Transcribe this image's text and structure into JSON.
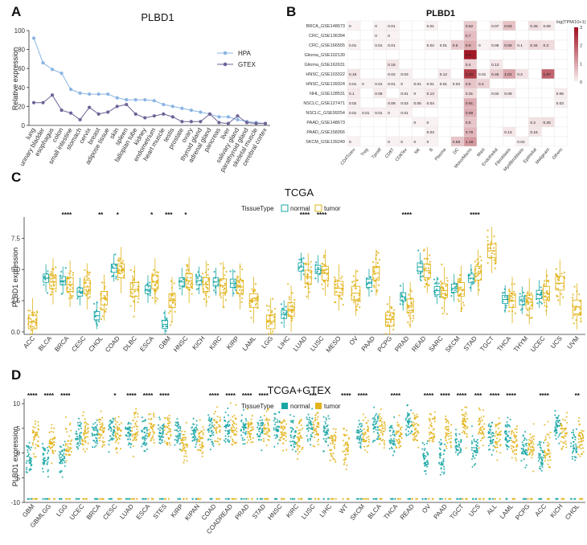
{
  "colors": {
    "hpa": "#8ab4e3",
    "gtex": "#6e6396",
    "normal": "#1aa6a6",
    "tumor": "#e2b31a",
    "heat_high": "#9e0f1e",
    "heat_low": "#f9f1f2"
  },
  "chart_data": [
    {
      "panel": "A",
      "type": "line",
      "title": "PLBD1",
      "xlabel": "",
      "ylabel": "Relative expression",
      "ylim": [
        0,
        100
      ],
      "yticks": [
        0,
        20,
        40,
        60,
        80,
        100
      ],
      "legend": "right",
      "categories": [
        "lung",
        "urinary bladder",
        "esophagus",
        "colon",
        "small intestine",
        "stomach",
        "cervix",
        "breast",
        "adipose tissue",
        "skin",
        "spleen",
        "fallopian tube",
        "kidney",
        "endometrium",
        "heart muscle",
        "testis",
        "prostate",
        "ovary",
        "thyroid gland",
        "adrenal gland",
        "pancreas",
        "liver",
        "salivary gland",
        "parathyroid gland",
        "skeletal muscle",
        "cerebral cortex"
      ],
      "series": [
        {
          "name": "HPA",
          "values": [
            92,
            66,
            59,
            55,
            38,
            34,
            33,
            33,
            33,
            29,
            27,
            27,
            27,
            26,
            22,
            20,
            18,
            16,
            14,
            12,
            9,
            9,
            6,
            4,
            3,
            2
          ]
        },
        {
          "name": "GTEX",
          "values": [
            24,
            24,
            32,
            16,
            13,
            6,
            19,
            12,
            14,
            20,
            22,
            12,
            8,
            10,
            12,
            9,
            4,
            4,
            4,
            12,
            3,
            2,
            10,
            3,
            2,
            2
          ]
        }
      ]
    },
    {
      "panel": "B",
      "type": "heatmap",
      "title": "PLBD1",
      "legend_title": "log(TPM/10+1)",
      "legend_ticks": [
        "0",
        "1",
        "2",
        "3"
      ],
      "rows": [
        "BRCA_GSE148673",
        "CRC_GSE136394",
        "CRC_GSE166555",
        "Glioma_GSE102130",
        "Glioma_GSE162631",
        "HNSC_GSE103322",
        "HNSC_GSE139324",
        "NHL_GSE128531",
        "NSCLC_GSE127471",
        "NSCLC_GSE99254",
        "PAAD_GSE148673",
        "PAAD_GSE158356",
        "SKCM_GSE139249"
      ],
      "columns": [
        "CD4Tconv",
        "Treg",
        "Tprolif",
        "CD8T",
        "CD8Tex",
        "NK",
        "B",
        "Plasma",
        "DC",
        "Mono/Macro",
        "Mast",
        "Endothelial",
        "Fibroblasts",
        "Myofibroblasts",
        "Epithelial",
        "Malignant",
        "Others"
      ],
      "cells": [
        [
          "0",
          "",
          "0",
          "0.01",
          "",
          "",
          "0.01",
          "",
          "",
          "0.52",
          "",
          "0.07",
          "0.63",
          "",
          "0.25",
          "0.08",
          ""
        ],
        [
          "",
          "",
          "0",
          "0",
          "",
          "",
          "",
          "",
          "",
          "0.7",
          "",
          "",
          "",
          "",
          "",
          "",
          ""
        ],
        [
          "0.01",
          "",
          "0.01",
          "0.01",
          "",
          "",
          "0.02",
          "0.01",
          "0.5",
          "0.9",
          "0",
          "0.06",
          "0.59",
          "0.1",
          "0.34",
          "0.3",
          ""
        ],
        [
          "",
          "",
          "",
          "",
          "",
          "",
          "",
          "",
          "",
          "2.9",
          "",
          "",
          "",
          "",
          "",
          "",
          ""
        ],
        [
          "",
          "",
          "",
          "0.16",
          "",
          "",
          "",
          "",
          "",
          "0.4",
          "",
          "0.13",
          "",
          "",
          "",
          "",
          ""
        ],
        [
          "0.16",
          "",
          "",
          "0.02",
          "0.03",
          "",
          "",
          "0.12",
          "",
          "2.46",
          "0.01",
          "0.45",
          "1.01",
          "0.2",
          "",
          "1.87",
          ""
        ],
        [
          "0.01",
          "0",
          "0.01",
          "0.01",
          "0",
          "0.01",
          "0.01",
          "0.01",
          "0.02",
          "0.6",
          "0.4",
          "",
          "",
          "",
          "",
          "",
          ""
        ],
        [
          "0.1",
          "",
          "0.08",
          "",
          "0.01",
          "0",
          "0.13",
          "",
          "",
          "0.31",
          "",
          "0.02",
          "0.09",
          "",
          "",
          "",
          "0.06"
        ],
        [
          "0.02",
          "",
          "",
          "0.08",
          "0.03",
          "0.05",
          "0.04",
          "",
          "",
          "0.91",
          "",
          "",
          "",
          "",
          "",
          "",
          "0.03"
        ],
        [
          "0.01",
          "0.01",
          "0.01",
          "0",
          "0.01",
          "",
          "",
          "",
          "",
          "0.89",
          "",
          "",
          "",
          "",
          "",
          "",
          ""
        ],
        [
          "",
          "",
          "",
          "",
          "",
          "0",
          "0",
          "",
          "",
          "0.6",
          "",
          "",
          "",
          "",
          "0.2",
          "0.25",
          ""
        ],
        [
          "",
          "",
          "",
          "",
          "",
          "",
          "0.03",
          "",
          "",
          "0.79",
          "",
          "",
          "0.13",
          "",
          "0.16",
          "",
          ""
        ],
        [
          "0",
          "",
          "",
          "0",
          "0",
          "0",
          "0",
          "",
          "0.59",
          "1.18",
          "",
          "",
          "",
          "0.02",
          "",
          "",
          ""
        ]
      ]
    },
    {
      "panel": "C",
      "type": "box",
      "title": "TCGA",
      "ylabel": "PLBD1 expression",
      "ylim": [
        -0.2,
        9.2
      ],
      "yticks": [
        0.0,
        2.5,
        5.0,
        7.5
      ],
      "legend_title": "TissueType",
      "legend_items": [
        "normal",
        "tumor"
      ],
      "categories": [
        "ACC",
        "BLCA",
        "BRCA",
        "CESC",
        "CHOL",
        "COAD",
        "DLBC",
        "ESCA",
        "GBM",
        "HNSC",
        "KICH",
        "KIRC",
        "KIRP",
        "LAML",
        "LGG",
        "LIHC",
        "LUAD",
        "LUSC",
        "MESO",
        "OV",
        "PAAD",
        "PCPG",
        "PRAD",
        "READ",
        "SARC",
        "SKCM",
        "STAD",
        "TGCT",
        "THCA",
        "THYM",
        "UCEC",
        "UCS",
        "UVM"
      ],
      "normal_median": [
        null,
        4.3,
        4.1,
        3.2,
        1.3,
        5.1,
        null,
        3.4,
        0.6,
        4.0,
        4.1,
        4.0,
        3.9,
        null,
        null,
        1.4,
        5.2,
        5.0,
        null,
        null,
        3.9,
        null,
        2.8,
        5.2,
        3.3,
        3.5,
        4.3,
        null,
        2.6,
        2.5,
        3.0,
        null,
        null
      ],
      "tumor_median": [
        0.8,
        4.0,
        3.8,
        3.6,
        2.7,
        4.9,
        3.4,
        4.0,
        2.5,
        4.1,
        3.8,
        3.7,
        3.6,
        2.5,
        0.8,
        1.8,
        4.4,
        4.7,
        3.5,
        3.1,
        4.7,
        1.0,
        2.1,
        4.9,
        3.3,
        3.4,
        4.7,
        6.5,
        2.5,
        2.4,
        3.1,
        3.9,
        2.0
      ],
      "significance": {
        "BRCA": "****",
        "CHOL": "**",
        "COAD": "*",
        "ESCA": "*",
        "GBM": "***",
        "HNSC": "*",
        "LUAD": "****",
        "LUSC": "****",
        "PRAD": "****",
        "STAD": "****"
      }
    },
    {
      "panel": "D",
      "type": "scatter",
      "title": "TCGA+GTEX",
      "ylabel": "PLBD1 expression",
      "ylim": [
        -10,
        11
      ],
      "yticks": [
        -10,
        -5,
        0,
        5,
        10
      ],
      "legend_title": "TissueType",
      "legend_items": [
        "normal",
        "tumor"
      ],
      "categories": [
        "GBM",
        "GBMLGG",
        "LGG",
        "UCEC",
        "BRCA",
        "CESC",
        "LUAD",
        "ESCA",
        "STES",
        "KIRP",
        "KIPAN",
        "COAD",
        "COADREAD",
        "PRAD",
        "STAD",
        "HNSC",
        "KIRC",
        "LUSC",
        "LIHC",
        "WT",
        "SKCM",
        "BLCA",
        "THCA",
        "READ",
        "OV",
        "PAAD",
        "TGCT",
        "UCS",
        "ALL",
        "LAML",
        "PCPG",
        "ACC",
        "KICH",
        "CHOL"
      ],
      "normal_median": [
        -1,
        -1,
        -1,
        4,
        4,
        4,
        4,
        4,
        4,
        4,
        4,
        5,
        5,
        5,
        5,
        5,
        4,
        5,
        4,
        null,
        4,
        5,
        3,
        6,
        -1,
        -1,
        2,
        1,
        3,
        4,
        1,
        -1,
        5,
        2
      ],
      "tumor_median": [
        3,
        2,
        2,
        4,
        4,
        4,
        5,
        5,
        5,
        2,
        3,
        5,
        5,
        5,
        5,
        4,
        3,
        5,
        2,
        1,
        4,
        5,
        4,
        5,
        5,
        4,
        6,
        5,
        4,
        2,
        1,
        1,
        4,
        3
      ],
      "significance": {
        "GBM": "****",
        "GBMLGG": "****",
        "LGG": "****",
        "CESC": "*",
        "LUAD": "****",
        "ESCA": "****",
        "STES": "****",
        "COAD": "****",
        "COADREAD": "****",
        "PRAD": "****",
        "STAD": "****",
        "LUSC": "***",
        "WT": "****",
        "SKCM": "****",
        "THCA": "****",
        "OV": "****",
        "PAAD": "****",
        "TGCT": "****",
        "UCS": "***",
        "ALL": "****",
        "LAML": "****",
        "ACC": "****",
        "CHOL": "**"
      }
    }
  ]
}
